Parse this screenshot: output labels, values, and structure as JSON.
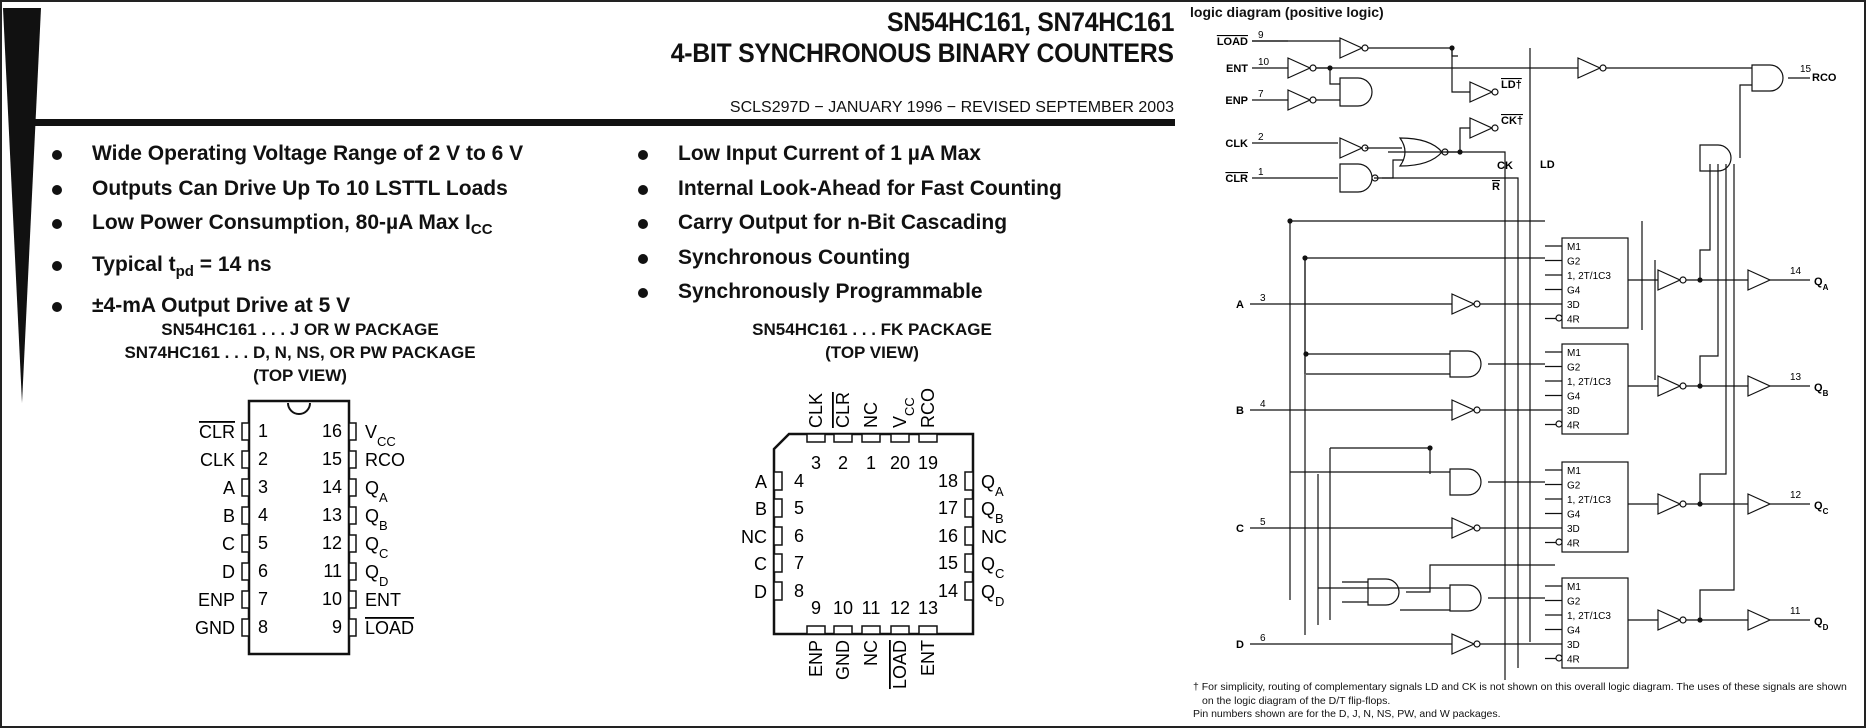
{
  "title": {
    "line1": "SN54HC161, SN74HC161",
    "line2": "4-BIT SYNCHRONOUS BINARY COUNTERS"
  },
  "doc_id": "SCLS297D − JANUARY 1996 − REVISED SEPTEMBER 2003",
  "features_left": [
    {
      "pre": "Wide Operating Voltage Range of 2 V to 6 V"
    },
    {
      "pre": "Outputs Can Drive Up To 10 LSTTL Loads"
    },
    {
      "pre": "Low Power Consumption, 80-µA Max I",
      "sub": "CC"
    },
    {
      "pre": "Typical t",
      "sub": "pd",
      "post": " = 14 ns"
    },
    {
      "pre": "±4-mA Output Drive at 5 V"
    }
  ],
  "features_right": [
    "Low Input Current of 1 µA Max",
    "Internal Look-Ahead for Fast Counting",
    "Carry Output for n-Bit Cascading",
    "Synchronous Counting",
    "Synchronously Programmable"
  ],
  "dip_package": {
    "line1": "SN54HC161 . . . J OR W PACKAGE",
    "line2": "SN74HC161 . . . D, N, NS, OR PW PACKAGE",
    "line3": "(TOP VIEW)"
  },
  "fk_package": {
    "line1": "SN54HC161 . . . FK PACKAGE",
    "line2": "(TOP VIEW)"
  },
  "dip_left": [
    {
      "n": "1",
      "b": "CLR",
      "bar": true
    },
    {
      "n": "2",
      "b": "CLK"
    },
    {
      "n": "3",
      "b": "A"
    },
    {
      "n": "4",
      "b": "B"
    },
    {
      "n": "5",
      "b": "C"
    },
    {
      "n": "6",
      "b": "D"
    },
    {
      "n": "7",
      "b": "ENP"
    },
    {
      "n": "8",
      "b": "GND"
    }
  ],
  "dip_right": [
    {
      "n": "16",
      "b": "V",
      "s": "CC"
    },
    {
      "n": "15",
      "b": "RCO"
    },
    {
      "n": "14",
      "b": "Q",
      "s": "A"
    },
    {
      "n": "13",
      "b": "Q",
      "s": "B"
    },
    {
      "n": "12",
      "b": "Q",
      "s": "C"
    },
    {
      "n": "11",
      "b": "Q",
      "s": "D"
    },
    {
      "n": "10",
      "b": "ENT"
    },
    {
      "n": "9",
      "b": "LOAD",
      "bar": true
    }
  ],
  "fk_top": [
    {
      "n": "3",
      "b": "CLK"
    },
    {
      "n": "2",
      "b": "CLR",
      "bar": true
    },
    {
      "n": "1",
      "b": "NC"
    },
    {
      "n": "20",
      "b": "V",
      "s": "CC"
    },
    {
      "n": "19",
      "b": "RCO"
    }
  ],
  "fk_left": [
    {
      "n": "4",
      "b": "A"
    },
    {
      "n": "5",
      "b": "B"
    },
    {
      "n": "6",
      "b": "NC"
    },
    {
      "n": "7",
      "b": "C"
    },
    {
      "n": "8",
      "b": "D"
    }
  ],
  "fk_right": [
    {
      "n": "18",
      "b": "Q",
      "s": "A"
    },
    {
      "n": "17",
      "b": "Q",
      "s": "B"
    },
    {
      "n": "16",
      "b": "NC"
    },
    {
      "n": "15",
      "b": "Q",
      "s": "C"
    },
    {
      "n": "14",
      "b": "Q",
      "s": "D"
    }
  ],
  "fk_bottom": [
    {
      "n": "9",
      "b": "ENP"
    },
    {
      "n": "10",
      "b": "GND"
    },
    {
      "n": "11",
      "b": "NC"
    },
    {
      "n": "12",
      "b": "LOAD",
      "bar": true
    },
    {
      "n": "13",
      "b": "ENT"
    }
  ],
  "logic_diagram": {
    "title": "logic diagram (positive logic)",
    "inputs": [
      {
        "name": "LOAD",
        "pin": "9",
        "bar": true
      },
      {
        "name": "ENT",
        "pin": "10"
      },
      {
        "name": "ENP",
        "pin": "7"
      },
      {
        "name": "CLK",
        "pin": "2"
      },
      {
        "name": "CLR",
        "pin": "1",
        "bar": true
      }
    ],
    "data_inputs": [
      {
        "name": "A",
        "pin": "3"
      },
      {
        "name": "B",
        "pin": "4"
      },
      {
        "name": "C",
        "pin": "5"
      },
      {
        "name": "D",
        "pin": "6"
      }
    ],
    "outputs": [
      {
        "name": "Q",
        "sub": "A",
        "pin": "14"
      },
      {
        "name": "Q",
        "sub": "B",
        "pin": "13"
      },
      {
        "name": "Q",
        "sub": "C",
        "pin": "12"
      },
      {
        "name": "Q",
        "sub": "D",
        "pin": "11"
      }
    ],
    "rco": {
      "name": "RCO",
      "pin": "15"
    },
    "flipflop_labels": [
      "M1",
      "G2",
      "1, 2T/1C3",
      "G4",
      "3D",
      "4R"
    ],
    "signal_ld": "LD",
    "signal_ck": "CK",
    "signal_r": "R",
    "dagger": "†"
  },
  "footnotes": [
    "† For simplicity, routing of complementary signals LD and CK is not shown on this overall logic diagram. The uses of these signals are shown",
    "on the logic diagram of the D/T flip-flops.",
    "Pin numbers shown are for the D, J, N, NS, PW, and W packages."
  ]
}
